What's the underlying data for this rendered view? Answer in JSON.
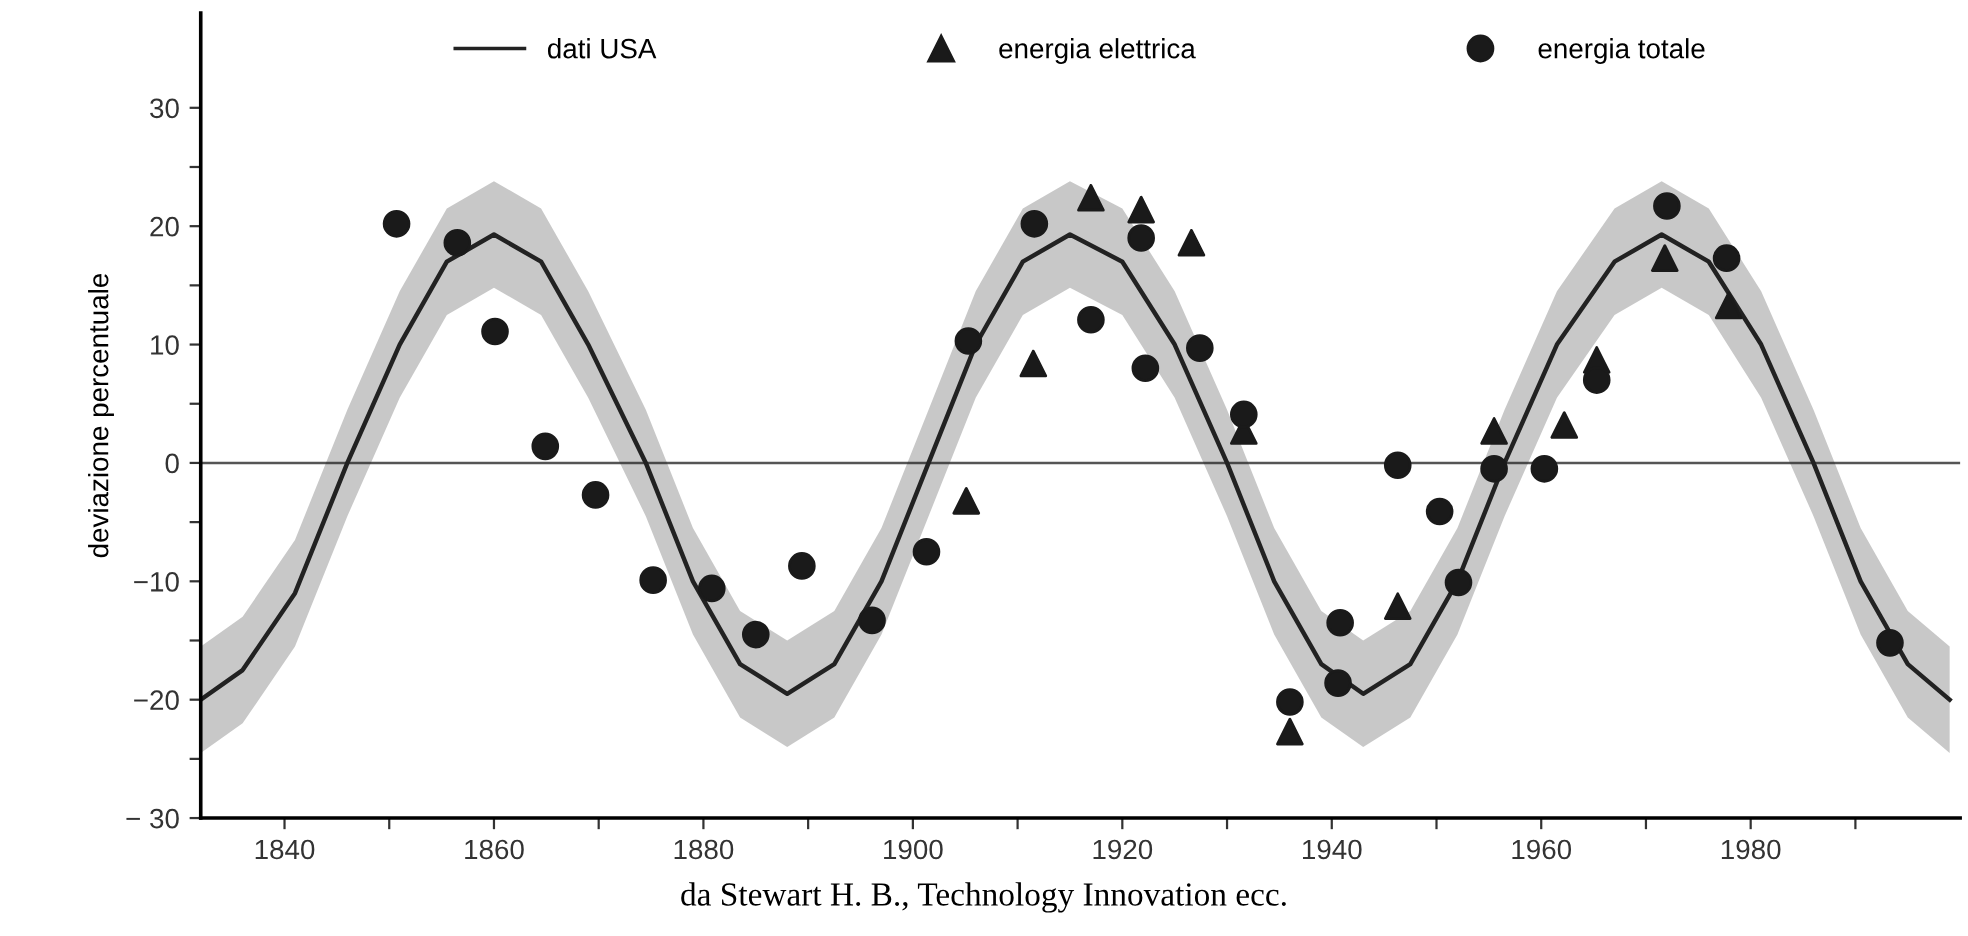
{
  "chart_data": {
    "type": "line",
    "ylabel": "deviazione percentuale",
    "legend": "top",
    "xlim": [
      1832,
      2000
    ],
    "ylim": [
      -30,
      38
    ],
    "xticks": [
      1840,
      {
        "value": 1850,
        "label": null
      },
      1860,
      {
        "value": 1870,
        "label": null
      },
      1880,
      {
        "value": 1890,
        "label": null
      },
      1900,
      {
        "value": 1910,
        "label": null
      },
      1920,
      {
        "value": 1930,
        "label": null
      },
      1940,
      {
        "value": 1950,
        "label": null
      },
      1960,
      {
        "value": 1970,
        "label": null
      },
      1980,
      {
        "value": 1990,
        "label": null
      }
    ],
    "yticks": [
      {
        "value": -30,
        "label": "− 30"
      },
      {
        "value": -25,
        "label": null
      },
      {
        "value": -20,
        "label": "−20"
      },
      {
        "value": -15,
        "label": null
      },
      {
        "value": -10,
        "label": "−10"
      },
      {
        "value": -5,
        "label": null
      },
      0,
      {
        "value": 5,
        "label": null
      },
      10,
      {
        "value": 15,
        "label": null
      },
      20,
      {
        "value": 25,
        "label": null
      },
      30
    ],
    "ref_lines": [
      {
        "axis": "y",
        "value": 0,
        "color": "#555555"
      }
    ],
    "series": [
      {
        "name": "dati USA",
        "color": "#222222",
        "marker": "none",
        "x": [
          1832,
          1836,
          1841,
          1846,
          1851,
          1855.5,
          1860,
          1864.5,
          1869,
          1874.5,
          1879,
          1883.5,
          1888,
          1892.5,
          1897,
          1901.5,
          1906,
          1910.5,
          1915,
          1920,
          1925,
          1930,
          1934.5,
          1939,
          1943,
          1947.5,
          1952,
          1956.5,
          1961.5,
          1967,
          1971.5,
          1976,
          1981,
          1986,
          1990.5,
          1995,
          1999
        ],
        "values": [
          -20,
          -17.5,
          -11,
          0,
          10,
          17,
          19.3,
          17,
          10,
          0,
          -10,
          -17,
          -19.5,
          -17,
          -10,
          0,
          10,
          17,
          19.3,
          17,
          10,
          0,
          -10,
          -17,
          -19.5,
          -17,
          -10,
          0,
          10,
          17,
          19.3,
          17,
          10,
          0,
          -10,
          -17,
          -20
        ],
        "lower": [
          -24.5,
          -22,
          -15.5,
          -4.5,
          5.5,
          12.5,
          14.8,
          12.5,
          5.5,
          -4.5,
          -14.5,
          -21.5,
          -24,
          -21.5,
          -14.5,
          -4.5,
          5.5,
          12.5,
          14.8,
          12.5,
          5.5,
          -4.5,
          -14.5,
          -21.5,
          -24,
          -21.5,
          -14.5,
          -4.5,
          5.5,
          12.5,
          14.8,
          12.5,
          5.5,
          -4.5,
          -14.5,
          -21.5,
          -24.5
        ],
        "upper": [
          -15.5,
          -13,
          -6.5,
          4.5,
          14.5,
          21.5,
          23.8,
          21.5,
          14.5,
          4.5,
          -5.5,
          -12.5,
          -15,
          -12.5,
          -5.5,
          4.5,
          14.5,
          21.5,
          23.8,
          21.5,
          14.5,
          4.5,
          -5.5,
          -12.5,
          -15,
          -12.5,
          -5.5,
          4.5,
          14.5,
          21.5,
          23.8,
          21.5,
          14.5,
          4.5,
          -5.5,
          -12.5,
          -15.5
        ]
      },
      {
        "name": "energia elettrica",
        "type": "scatter",
        "color": "#1a1a1a",
        "marker": "triangle",
        "x": [
          1905.1,
          1911.5,
          1917,
          1921.8,
          1926.6,
          1931.6,
          1936,
          1946.3,
          1955.5,
          1962.2,
          1965.3,
          1971.8,
          1977.9
        ],
        "values": [
          -3.2,
          8.4,
          22.4,
          21.4,
          18.6,
          2.7,
          -22.7,
          -12.1,
          2.7,
          3.2,
          8.7,
          17.3,
          13.3
        ]
      },
      {
        "name": "energia totale",
        "type": "scatter",
        "color": "#1a1a1a",
        "marker": "circle",
        "x": [
          1850.7,
          1856.5,
          1860.1,
          1864.9,
          1869.7,
          1875.2,
          1880.8,
          1885,
          1889.4,
          1896.1,
          1901.3,
          1905.3,
          1911.6,
          1917,
          1921.8,
          1922.2,
          1927.4,
          1931.6,
          1936,
          1940.6,
          1940.8,
          1946.3,
          1950.3,
          1952.1,
          1955.5,
          1960.3,
          1965.3,
          1972,
          1977.7,
          1993.3
        ],
        "values": [
          20.2,
          18.6,
          11.1,
          1.4,
          -2.7,
          -9.9,
          -10.6,
          -14.5,
          -8.7,
          -13.3,
          -7.5,
          10.3,
          20.2,
          12.1,
          19.0,
          8.0,
          9.7,
          4.1,
          -20.2,
          -18.6,
          -13.5,
          -0.2,
          -4.1,
          -10.1,
          -0.5,
          -0.5,
          7.0,
          21.7,
          17.3,
          -15.2
        ]
      }
    ],
    "annotations": [
      "da Stewart H. B., Technology Innovation ecc."
    ]
  }
}
